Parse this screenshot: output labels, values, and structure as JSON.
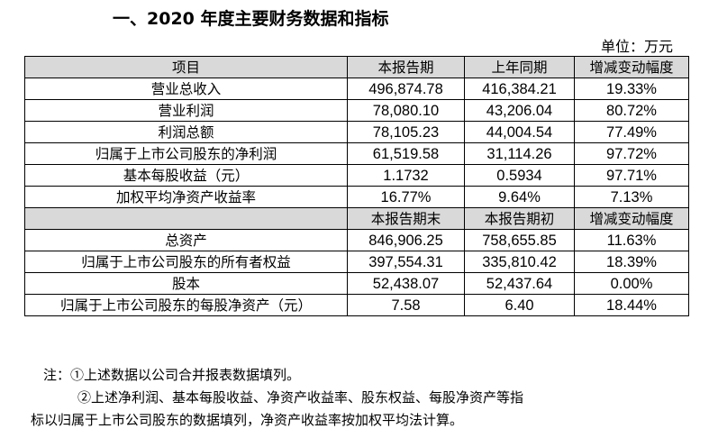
{
  "title": "一、2020 年度主要财务数据和指标",
  "unit": "单位：万元",
  "header1": [
    "项目",
    "本报告期",
    "上年同期",
    "增减变动幅度"
  ],
  "rows1": [
    {
      "label": "营业总收入",
      "current": "496,874.78",
      "previous": "416,384.21",
      "change": "19.33%"
    },
    {
      "label": "营业利润",
      "current": "78,080.10",
      "previous": "43,206.04",
      "change": "80.72%"
    },
    {
      "label": "利润总额",
      "current": "78,105.23",
      "previous": "44,004.54",
      "change": "77.49%"
    },
    {
      "label": "归属于上市公司股东的净利润",
      "current": "61,519.58",
      "previous": "31,114.26",
      "change": "97.72%"
    },
    {
      "label": "基本每股收益（元）",
      "current": "1.1732",
      "previous": "0.5934",
      "change": "97.71%"
    },
    {
      "label": "加权平均净资产收益率",
      "current": "16.77%",
      "previous": "9.64%",
      "change": "7.13%"
    }
  ],
  "header2": [
    "",
    "本报告期末",
    "本报告期初",
    "增减变动幅度"
  ],
  "rows2": [
    {
      "label": "总资产",
      "current": "846,906.25",
      "previous": "758,655.85",
      "change": "11.63%"
    },
    {
      "label": "归属于上市公司股东的所有者权益",
      "current": "397,554.31",
      "previous": "335,810.42",
      "change": "18.39%"
    },
    {
      "label": "股本",
      "current": "52,438.07",
      "previous": "52,437.64",
      "change": "0.00%"
    },
    {
      "label": "归属于上市公司股东的每股净资产（元）",
      "current": "7.58",
      "previous": "6.40",
      "change": "18.44%"
    }
  ],
  "notes": [
    "注：①上述数据以公司合并报表数据填列。",
    "②上述净利润、基本每股收益、净资产收益率、股东权益、每股净资产等指",
    "标以归属于上市公司股东的数据填列，净资产收益率按加权平均法计算。"
  ]
}
